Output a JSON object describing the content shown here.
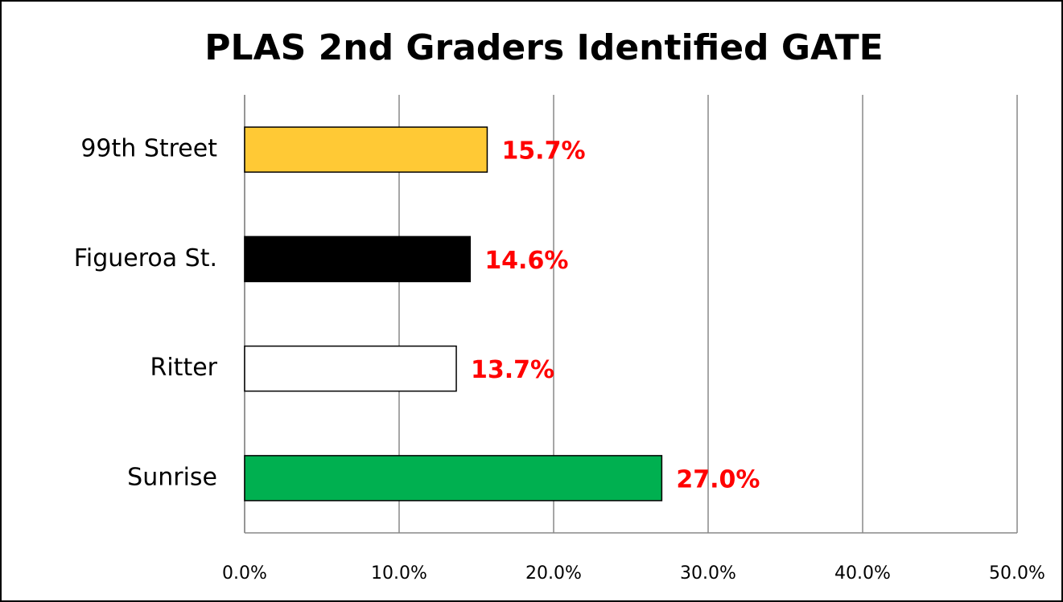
{
  "chart_data": {
    "type": "barh",
    "title": "PLAS 2nd Graders Identified GATE",
    "categories": [
      "99th Street",
      "Figueroa St.",
      "Ritter",
      "Sunrise"
    ],
    "values": [
      15.7,
      14.6,
      13.7,
      27.0
    ],
    "value_labels": [
      "15.7%",
      "14.6%",
      "13.7%",
      "27.0%"
    ],
    "colors": [
      "#ffc935",
      "#000000",
      "#ffffff",
      "#00b050"
    ],
    "value_label_color": "#ff0000",
    "xlim": [
      0,
      50
    ],
    "xticks": [
      {
        "value": 0,
        "label": "0.0%"
      },
      {
        "value": 10,
        "label": "10.0%"
      },
      {
        "value": 20,
        "label": "20.0%"
      },
      {
        "value": 30,
        "label": "30.0%"
      },
      {
        "value": 40,
        "label": "40.0%"
      },
      {
        "value": 50,
        "label": "50.0%"
      }
    ],
    "grid": true
  }
}
